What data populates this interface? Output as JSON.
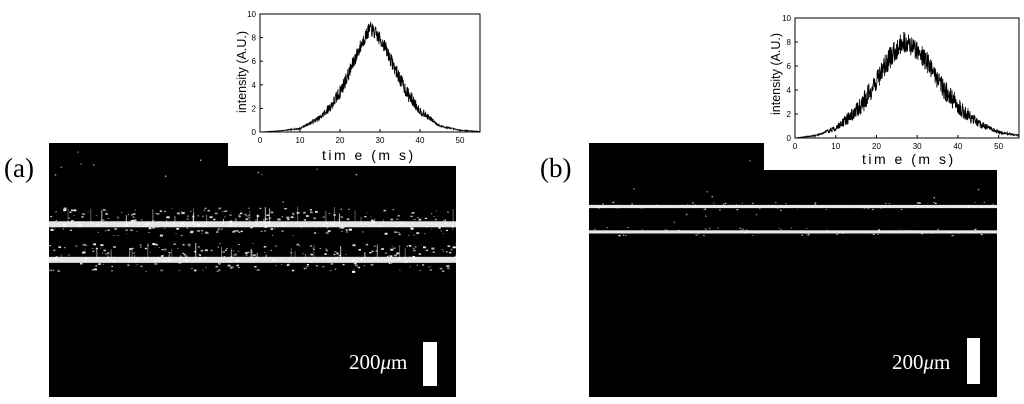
{
  "figure": {
    "panels": [
      {
        "id": "a",
        "letter": "(a)",
        "scale_value": "200",
        "scale_unit_mu": "μ",
        "scale_unit_m": "m",
        "bands": [
          {
            "level": 0.32,
            "brightness": "bright"
          },
          {
            "level": 0.46,
            "brightness": "bright"
          }
        ],
        "scatter": "heavy"
      },
      {
        "id": "b",
        "letter": "(b)",
        "scale_value": "200",
        "scale_unit_mu": "μ",
        "scale_unit_m": "m",
        "bands": [
          {
            "level": 0.25,
            "brightness": "thin"
          },
          {
            "level": 0.35,
            "brightness": "thin"
          }
        ],
        "scatter": "light"
      }
    ]
  },
  "chart_data": [
    {
      "type": "line",
      "panel": "a",
      "title": "",
      "xlabel": "tim e (m s)",
      "ylabel": "intensity (A.U.)",
      "xlim": [
        0,
        55
      ],
      "ylim": [
        0,
        10
      ],
      "xticks": [
        0,
        10,
        20,
        30,
        40,
        50
      ],
      "yticks": [
        0,
        2,
        4,
        6,
        8,
        10
      ],
      "grid": false,
      "legend": "none",
      "series": [
        {
          "peak_center_ms": 27.5,
          "peak_width_ms": 7.5,
          "peak_value": 8.8,
          "noise_amplitude": 0.6,
          "x": [
            0,
            5,
            10,
            15,
            18,
            20,
            22,
            24,
            26,
            27.5,
            29,
            31,
            33,
            35,
            37,
            40,
            45,
            50,
            55
          ],
          "y": [
            0.0,
            0.1,
            0.3,
            1.2,
            2.3,
            3.4,
            4.8,
            6.4,
            7.9,
            8.8,
            8.3,
            7.4,
            5.9,
            4.5,
            3.2,
            1.8,
            0.5,
            0.15,
            0.05
          ]
        }
      ]
    },
    {
      "type": "line",
      "panel": "b",
      "title": "",
      "xlabel": "tim e (m s)",
      "ylabel": "intensity (A.U.)",
      "xlim": [
        0,
        55
      ],
      "ylim": [
        0,
        10
      ],
      "xticks": [
        0,
        10,
        20,
        30,
        40,
        50
      ],
      "yticks": [
        0,
        2,
        4,
        6,
        8,
        10
      ],
      "grid": false,
      "legend": "none",
      "series": [
        {
          "peak_center_ms": 27,
          "peak_width_ms": 9,
          "peak_value": 8.0,
          "noise_amplitude": 0.9,
          "x": [
            0,
            5,
            10,
            15,
            18,
            20,
            22,
            24,
            26,
            27,
            29,
            31,
            33,
            35,
            37,
            40,
            45,
            50,
            55
          ],
          "y": [
            0.0,
            0.2,
            0.8,
            2.2,
            3.6,
            4.8,
            6.0,
            7.0,
            7.9,
            8.0,
            7.6,
            7.0,
            6.1,
            5.0,
            3.9,
            2.6,
            1.2,
            0.5,
            0.2
          ]
        }
      ]
    }
  ]
}
